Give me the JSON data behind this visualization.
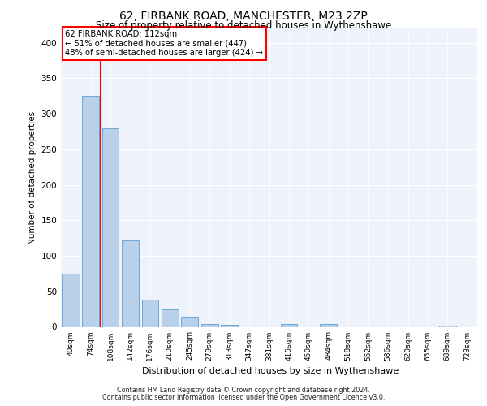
{
  "title1": "62, FIRBANK ROAD, MANCHESTER, M23 2ZP",
  "title2": "Size of property relative to detached houses in Wythenshawe",
  "xlabel": "Distribution of detached houses by size in Wythenshawe",
  "ylabel": "Number of detached properties",
  "footnote1": "Contains HM Land Registry data © Crown copyright and database right 2024.",
  "footnote2": "Contains public sector information licensed under the Open Government Licence v3.0.",
  "bar_color": "#b8d0ea",
  "bar_edge_color": "#5a9fd4",
  "background_color": "#eef2fb",
  "annotation_line1": "62 FIRBANK ROAD: 112sqm",
  "annotation_line2": "← 51% of detached houses are smaller (447)",
  "annotation_line3": "48% of semi-detached houses are larger (424) →",
  "annotation_box_color": "white",
  "annotation_box_edge_color": "red",
  "vline_color": "red",
  "vline_x": 1.5,
  "ylim": [
    0,
    420
  ],
  "yticks": [
    0,
    50,
    100,
    150,
    200,
    250,
    300,
    350,
    400
  ],
  "categories": [
    "40sqm",
    "74sqm",
    "108sqm",
    "142sqm",
    "176sqm",
    "210sqm",
    "245sqm",
    "279sqm",
    "313sqm",
    "347sqm",
    "381sqm",
    "415sqm",
    "450sqm",
    "484sqm",
    "518sqm",
    "552sqm",
    "586sqm",
    "620sqm",
    "655sqm",
    "689sqm",
    "723sqm"
  ],
  "values": [
    75,
    325,
    280,
    122,
    38,
    25,
    13,
    4,
    3,
    0,
    0,
    4,
    0,
    4,
    0,
    0,
    0,
    0,
    0,
    2,
    0
  ]
}
